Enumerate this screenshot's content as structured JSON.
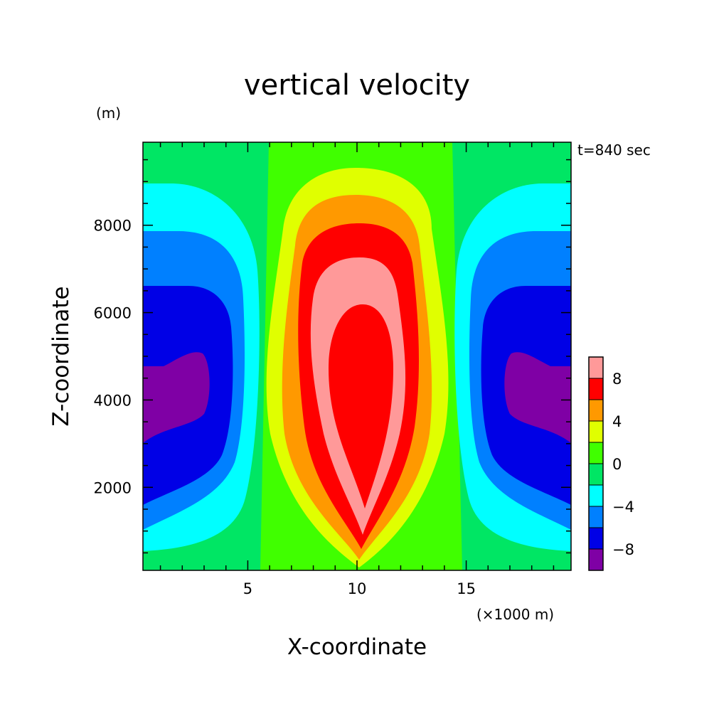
{
  "chart_data": {
    "type": "heatmap",
    "subtype": "filled-contour",
    "title": "vertical velocity",
    "xlabel": "X-coordinate",
    "ylabel": "Z-coordinate",
    "x_unit": "(×1000 m)",
    "y_unit": "(m)",
    "annotation": "t=840 sec",
    "xlim": [
      0.2,
      19.8
    ],
    "ylim": [
      100,
      9900
    ],
    "x_ticks": [
      5,
      10,
      15
    ],
    "y_ticks": [
      2000,
      4000,
      6000,
      8000
    ],
    "grid": false,
    "legend": "colorbar-right",
    "contour_levels": [
      -10,
      -8,
      -6,
      -4,
      -2,
      0,
      2,
      4,
      6,
      8,
      10
    ],
    "colorbar_labels": [
      -8,
      -4,
      0,
      4,
      8
    ],
    "band_colors": [
      "#7f00a5",
      "#0000e6",
      "#0080ff",
      "#00ffff",
      "#00e664",
      "#40ff00",
      "#e0ff00",
      "#ff9900",
      "#ff0000",
      "#ff9999",
      "#ffffff"
    ],
    "field": {
      "description": "updraft centred at x=10, downdrafts near domain edges",
      "max_w_region": {
        "x": 10,
        "z_range": [
          1500,
          6200
        ],
        "value_min": 10
      },
      "min_w_region": [
        {
          "x_range": [
            0.2,
            3.5
          ],
          "z_range": [
            3000,
            5100
          ],
          "value_max": -8
        },
        {
          "x_range": [
            16.5,
            19.8
          ],
          "z_range": [
            3000,
            5100
          ],
          "value_max": -8
        }
      ]
    }
  }
}
